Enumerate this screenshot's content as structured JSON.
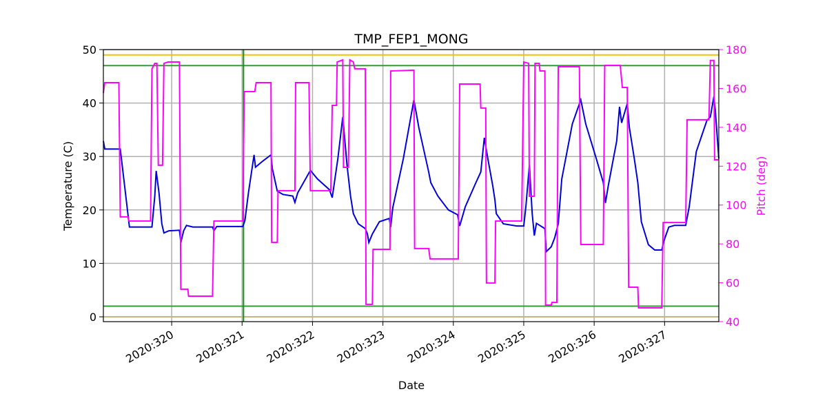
{
  "chart_data": {
    "type": "line",
    "title": "TMP_FEP1_MONG",
    "x_label": "Date",
    "y_label": "Temperature (C)",
    "y2_label": "Pitch (deg)",
    "y2_color": "#ff00ff",
    "grid": true,
    "xlim": [
      319.03,
      327.77
    ],
    "xticks": [
      {
        "value": 320,
        "label": "2020:320"
      },
      {
        "value": 321,
        "label": "2020:321"
      },
      {
        "value": 322,
        "label": "2020:322"
      },
      {
        "value": 323,
        "label": "2020:323"
      },
      {
        "value": 324,
        "label": "2020:324"
      },
      {
        "value": 325,
        "label": "2020:325"
      },
      {
        "value": 326,
        "label": "2020:326"
      },
      {
        "value": 327,
        "label": "2020:327"
      }
    ],
    "ylim": [
      -0.9,
      50
    ],
    "yticks": [
      0,
      10,
      20,
      30,
      40,
      50
    ],
    "y2lim": [
      40,
      180
    ],
    "y2ticks": [
      40,
      60,
      80,
      100,
      120,
      140,
      160,
      180
    ],
    "hlines": [
      {
        "value": 49,
        "color": "#f2c200"
      },
      {
        "value": 47,
        "color": "#2ca02c"
      },
      {
        "value": 2,
        "color": "#2ca02c"
      },
      {
        "value": 0,
        "color": "#c8b478"
      }
    ],
    "vlines": [
      {
        "value": 321.02,
        "color": "#1a8c1a"
      }
    ],
    "series": [
      {
        "color": "#0000dd",
        "x": [
          319.03,
          319.05,
          319.27,
          319.32,
          319.4,
          319.72,
          319.76,
          319.78,
          319.82,
          319.86,
          319.89,
          319.96,
          320.11,
          320.13,
          320.17,
          320.21,
          320.3,
          320.58,
          320.6,
          320.64,
          321.01,
          321.04,
          321.09,
          321.17,
          321.19,
          321.28,
          321.41,
          321.43,
          321.5,
          321.58,
          321.72,
          321.75,
          321.79,
          321.97,
          322.07,
          322.24,
          322.28,
          322.36,
          322.43,
          322.49,
          322.54,
          322.58,
          322.65,
          322.75,
          322.78,
          322.8,
          322.85,
          322.95,
          323.09,
          323.11,
          323.14,
          323.29,
          323.44,
          323.51,
          323.65,
          323.68,
          323.78,
          323.93,
          324.06,
          324.09,
          324.17,
          324.32,
          324.39,
          324.44,
          324.49,
          324.56,
          324.59,
          324.61,
          324.71,
          324.9,
          325.0,
          325.03,
          325.08,
          325.12,
          325.15,
          325.18,
          325.3,
          325.32,
          325.39,
          325.44,
          325.49,
          325.54,
          325.69,
          325.81,
          325.88,
          326.03,
          326.13,
          326.16,
          326.2,
          326.32,
          326.36,
          326.39,
          326.47,
          326.5,
          326.57,
          326.62,
          326.67,
          326.77,
          326.86,
          326.96,
          326.99,
          327.06,
          327.14,
          327.3,
          327.35,
          327.45,
          327.6,
          327.65,
          327.7,
          327.72,
          327.77
        ],
        "values": [
          32.9,
          31.4,
          31.4,
          25.8,
          16.8,
          16.8,
          22.6,
          27.3,
          23.2,
          17.4,
          15.7,
          16.1,
          16.2,
          13.9,
          16.1,
          17.1,
          16.8,
          16.8,
          16.1,
          16.9,
          16.9,
          18.0,
          23.2,
          30.3,
          28.0,
          29.0,
          30.3,
          27.7,
          23.5,
          22.9,
          22.6,
          21.4,
          23.2,
          27.4,
          25.8,
          23.8,
          22.3,
          29.6,
          37.4,
          28.4,
          22.6,
          19.3,
          17.4,
          16.5,
          15.5,
          13.9,
          15.5,
          17.8,
          18.4,
          16.8,
          20.4,
          29.6,
          40.6,
          35.4,
          27.1,
          25.1,
          22.6,
          20.0,
          19.1,
          17.0,
          20.6,
          25.1,
          27.1,
          33.5,
          29.6,
          24.5,
          21.9,
          19.3,
          17.4,
          17.0,
          17.0,
          20.6,
          28.4,
          19.3,
          15.2,
          17.5,
          16.5,
          12.2,
          13.1,
          14.8,
          17.4,
          25.8,
          36.1,
          40.6,
          36.1,
          29.6,
          25.1,
          21.3,
          24.5,
          32.9,
          39.3,
          36.3,
          39.9,
          35.4,
          29.6,
          25.1,
          17.8,
          13.5,
          12.5,
          12.5,
          14.2,
          16.8,
          17.1,
          17.1,
          20.6,
          30.9,
          36.7,
          37.4,
          41.2,
          38.7,
          29.6
        ]
      },
      {
        "color": "#ff00ff",
        "axis": "y2",
        "x": [
          319.03,
          319.05,
          319.25,
          319.27,
          319.38,
          319.39,
          319.7,
          319.72,
          319.76,
          319.79,
          319.81,
          319.87,
          319.89,
          319.95,
          320.11,
          320.13,
          320.23,
          320.24,
          320.58,
          320.6,
          321.01,
          321.03,
          321.18,
          321.2,
          321.41,
          321.42,
          321.5,
          321.51,
          321.75,
          321.76,
          321.95,
          321.97,
          322.26,
          322.28,
          322.34,
          322.35,
          322.43,
          322.44,
          322.51,
          322.53,
          322.58,
          322.6,
          322.75,
          322.76,
          322.85,
          322.86,
          323.1,
          323.11,
          323.44,
          323.45,
          323.65,
          323.67,
          324.07,
          324.09,
          324.38,
          324.39,
          324.46,
          324.47,
          324.59,
          324.6,
          324.97,
          325.0,
          325.07,
          325.08,
          325.15,
          325.16,
          325.22,
          325.23,
          325.3,
          325.31,
          325.39,
          325.4,
          325.47,
          325.49,
          325.79,
          325.81,
          326.13,
          326.15,
          326.37,
          326.4,
          326.47,
          326.49,
          326.62,
          326.63,
          326.96,
          326.98,
          327.3,
          327.32,
          327.63,
          327.65,
          327.7,
          327.71,
          327.77
        ],
        "values": [
          157.7,
          163.0,
          163.0,
          93.9,
          93.9,
          91.8,
          91.8,
          170.1,
          172.9,
          172.9,
          120.5,
          120.5,
          172.9,
          173.6,
          173.6,
          56.7,
          56.7,
          53.1,
          53.1,
          91.8,
          91.8,
          158.4,
          158.4,
          163.0,
          163.0,
          80.8,
          80.8,
          107.4,
          107.4,
          163.0,
          163.0,
          107.4,
          107.4,
          151.3,
          151.3,
          173.6,
          174.7,
          119.4,
          119.4,
          174.7,
          173.6,
          170.1,
          170.1,
          48.9,
          48.9,
          77.2,
          77.2,
          169.0,
          169.4,
          77.6,
          77.6,
          72.3,
          72.3,
          162.3,
          162.3,
          149.9,
          149.9,
          59.9,
          59.9,
          91.8,
          91.8,
          173.6,
          172.9,
          104.5,
          104.5,
          172.9,
          172.9,
          169.0,
          169.0,
          48.5,
          48.5,
          49.9,
          49.9,
          171.2,
          171.2,
          79.7,
          79.7,
          171.9,
          171.9,
          160.5,
          160.5,
          57.7,
          57.7,
          47.1,
          47.1,
          91.0,
          91.0,
          143.9,
          143.9,
          174.4,
          174.4,
          123.3,
          123.3
        ]
      }
    ]
  }
}
